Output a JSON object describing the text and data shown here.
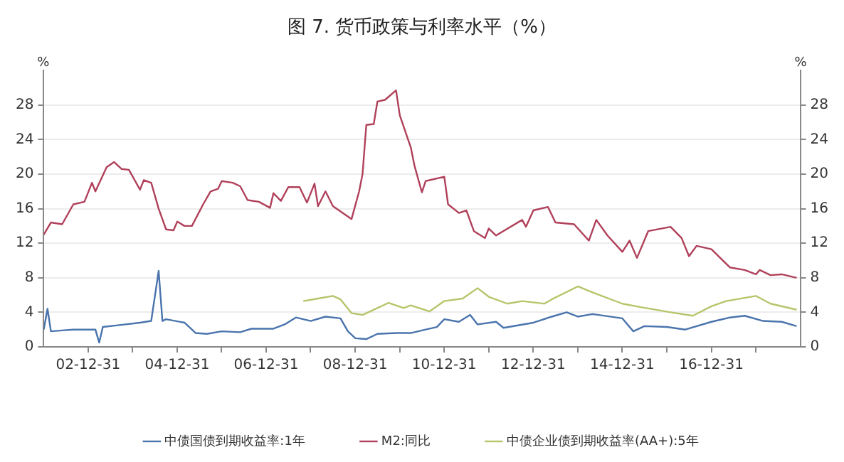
{
  "chart_data": {
    "type": "line",
    "title": "图 7. 货币政策与利率水平（%）",
    "ylabel": "%",
    "y2label": "%",
    "xlim": [
      "2002-01-01",
      "2018-12-31"
    ],
    "xticks": [
      {
        "value": "2002-12-31",
        "label": "02-12-31"
      },
      {
        "value": "2003-12-31",
        "label": null
      },
      {
        "value": "2004-12-31",
        "label": "04-12-31"
      },
      {
        "value": "2005-12-31",
        "label": null
      },
      {
        "value": "2006-12-31",
        "label": "06-12-31"
      },
      {
        "value": "2007-12-31",
        "label": null
      },
      {
        "value": "2008-12-31",
        "label": "08-12-31"
      },
      {
        "value": "2009-12-31",
        "label": null
      },
      {
        "value": "2010-12-31",
        "label": "10-12-31"
      },
      {
        "value": "2011-12-31",
        "label": null
      },
      {
        "value": "2012-12-31",
        "label": "12-12-31"
      },
      {
        "value": "2013-12-31",
        "label": null
      },
      {
        "value": "2014-12-31",
        "label": "14-12-31"
      },
      {
        "value": "2015-12-31",
        "label": null
      },
      {
        "value": "2016-12-31",
        "label": "16-12-31"
      },
      {
        "value": "2017-12-31",
        "label": null
      }
    ],
    "ylim": [
      0,
      32
    ],
    "yticks": [
      0,
      4,
      8,
      12,
      16,
      20,
      24,
      28
    ],
    "y2lim": [
      0,
      32
    ],
    "y2ticks": [
      0,
      4,
      8,
      12,
      16,
      20,
      24,
      28
    ],
    "grid": "y",
    "legend": "bottom",
    "line_style": "solid",
    "marker": "none",
    "series": [
      {
        "name": "中债国债到期收益率:1年",
        "color": "#4a74ad",
        "x": [
          "2002-01",
          "2002-02",
          "2002-03",
          "2002-06",
          "2002-09",
          "2003-03",
          "2003-04",
          "2003-05",
          "2003-09",
          "2004-03",
          "2004-06",
          "2004-08",
          "2004-09",
          "2004-10",
          "2005-03",
          "2005-06",
          "2005-09",
          "2006-01",
          "2006-06",
          "2006-09",
          "2007-03",
          "2007-06",
          "2007-09",
          "2008-01",
          "2008-05",
          "2008-09",
          "2008-11",
          "2009-01",
          "2009-04",
          "2009-07",
          "2009-12",
          "2010-04",
          "2010-08",
          "2010-11",
          "2011-01",
          "2011-05",
          "2011-08",
          "2011-10",
          "2012-03",
          "2012-05",
          "2013-01",
          "2013-06",
          "2013-10",
          "2014-01",
          "2014-05",
          "2015-01",
          "2015-04",
          "2015-07",
          "2016-01",
          "2016-06",
          "2017-01",
          "2017-06",
          "2017-10",
          "2018-03",
          "2018-08",
          "2018-12"
        ],
        "values": [
          2.0,
          4.4,
          1.8,
          1.9,
          2.0,
          2.0,
          0.5,
          2.3,
          2.5,
          2.8,
          3.0,
          8.8,
          3.0,
          3.2,
          2.8,
          1.6,
          1.5,
          1.8,
          1.7,
          2.1,
          2.1,
          2.6,
          3.4,
          3.0,
          3.5,
          3.3,
          1.8,
          1.0,
          0.9,
          1.5,
          1.6,
          1.6,
          2.0,
          2.3,
          3.2,
          2.9,
          3.7,
          2.6,
          2.9,
          2.2,
          2.8,
          3.5,
          4.0,
          3.5,
          3.8,
          3.3,
          1.8,
          2.4,
          2.3,
          2.0,
          2.9,
          3.4,
          3.6,
          3.0,
          2.9,
          2.4
        ]
      },
      {
        "name": "M2:同比",
        "color": "#b0405a",
        "x": [
          "2002-01",
          "2002-03",
          "2002-06",
          "2002-09",
          "2002-12",
          "2003-02",
          "2003-03",
          "2003-06",
          "2003-08",
          "2003-10",
          "2003-12",
          "2004-03",
          "2004-04",
          "2004-06",
          "2004-08",
          "2004-10",
          "2004-12",
          "2005-01",
          "2005-03",
          "2005-05",
          "2005-08",
          "2005-10",
          "2005-12",
          "2006-01",
          "2006-04",
          "2006-06",
          "2006-08",
          "2006-11",
          "2007-02",
          "2007-03",
          "2007-05",
          "2007-07",
          "2007-10",
          "2007-12",
          "2008-02",
          "2008-03",
          "2008-05",
          "2008-07",
          "2008-12",
          "2009-02",
          "2009-03",
          "2009-04",
          "2009-06",
          "2009-07",
          "2009-09",
          "2009-12",
          "2010-01",
          "2010-04",
          "2010-05",
          "2010-07",
          "2010-08",
          "2011-01",
          "2011-02",
          "2011-05",
          "2011-07",
          "2011-09",
          "2011-12",
          "2012-01",
          "2012-03",
          "2012-10",
          "2012-11",
          "2013-01",
          "2013-05",
          "2013-07",
          "2013-12",
          "2014-04",
          "2014-06",
          "2014-09",
          "2015-01",
          "2015-03",
          "2015-05",
          "2015-08",
          "2016-02",
          "2016-05",
          "2016-07",
          "2016-09",
          "2017-01",
          "2017-06",
          "2017-10",
          "2018-01",
          "2018-02",
          "2018-05",
          "2018-08",
          "2018-12"
        ],
        "values": [
          13.0,
          14.4,
          14.2,
          16.5,
          16.8,
          19.0,
          18.0,
          20.8,
          21.4,
          20.6,
          20.5,
          18.2,
          19.3,
          19.0,
          16.0,
          13.6,
          13.5,
          14.5,
          14.0,
          14.0,
          16.5,
          18.0,
          18.3,
          19.2,
          19.0,
          18.6,
          17.0,
          16.8,
          16.1,
          17.8,
          16.9,
          18.5,
          18.5,
          16.7,
          18.9,
          16.3,
          18.0,
          16.3,
          14.8,
          18.0,
          20.0,
          25.7,
          25.8,
          28.4,
          28.6,
          29.7,
          26.8,
          23.1,
          21.0,
          17.9,
          19.2,
          19.7,
          16.5,
          15.5,
          15.8,
          13.4,
          12.6,
          13.7,
          12.9,
          14.7,
          13.9,
          15.8,
          16.2,
          14.4,
          14.2,
          12.3,
          14.7,
          12.9,
          11.0,
          12.3,
          10.3,
          13.4,
          13.9,
          12.6,
          10.5,
          11.7,
          11.3,
          9.2,
          8.9,
          8.4,
          8.9,
          8.3,
          8.4,
          8.0
        ]
      },
      {
        "name": "中债企业债到期收益率(AA+):5年",
        "color": "#b8c46a",
        "x": [
          "2007-11",
          "2008-03",
          "2008-07",
          "2008-09",
          "2008-12",
          "2009-03",
          "2009-07",
          "2009-10",
          "2010-02",
          "2010-04",
          "2010-09",
          "2011-01",
          "2011-06",
          "2011-10",
          "2012-01",
          "2012-06",
          "2012-10",
          "2013-04",
          "2013-06",
          "2014-01",
          "2014-05",
          "2015-01",
          "2015-06",
          "2016-02",
          "2016-08",
          "2017-01",
          "2017-05",
          "2018-01",
          "2018-05",
          "2018-12"
        ],
        "values": [
          5.3,
          5.6,
          5.9,
          5.5,
          3.9,
          3.7,
          4.5,
          5.1,
          4.5,
          4.8,
          4.1,
          5.3,
          5.6,
          6.8,
          5.8,
          5.0,
          5.3,
          5.0,
          5.5,
          7.0,
          6.3,
          5.0,
          4.6,
          4.0,
          3.6,
          4.7,
          5.3,
          5.9,
          5.0,
          4.3
        ]
      }
    ]
  }
}
